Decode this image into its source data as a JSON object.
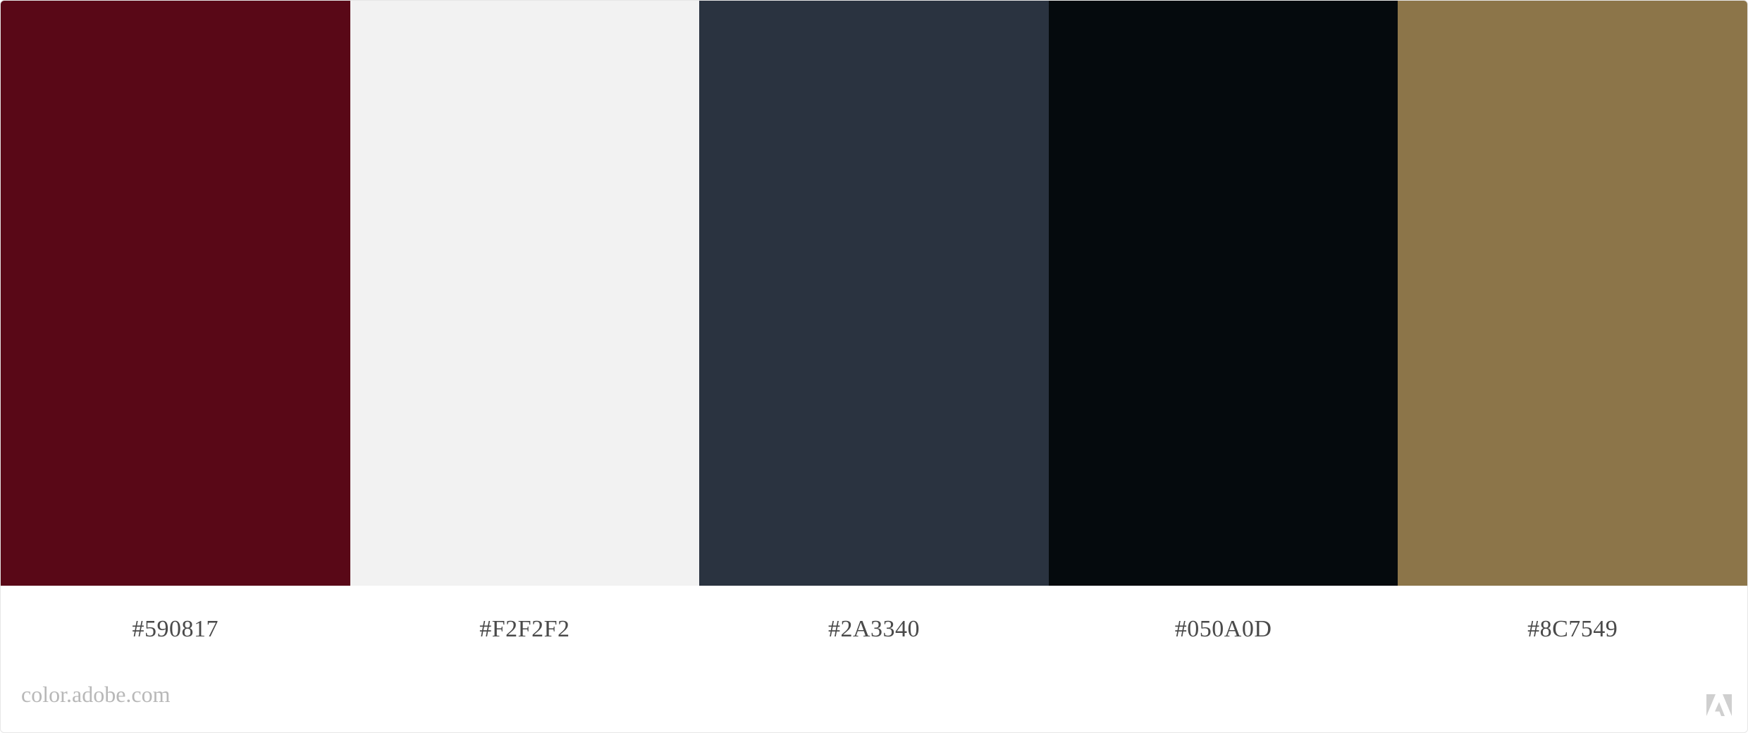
{
  "palette": {
    "swatches": [
      {
        "hex": "#590817",
        "label": "#590817"
      },
      {
        "hex": "#F2F2F2",
        "label": "#F2F2F2"
      },
      {
        "hex": "#2A3340",
        "label": "#2A3340"
      },
      {
        "hex": "#050A0D",
        "label": "#050A0D"
      },
      {
        "hex": "#8C7549",
        "label": "#8C7549"
      }
    ]
  },
  "footer": {
    "site": "color.adobe.com",
    "logo_icon": "adobe-logo-icon",
    "logo_color": "#cfcfcf"
  }
}
